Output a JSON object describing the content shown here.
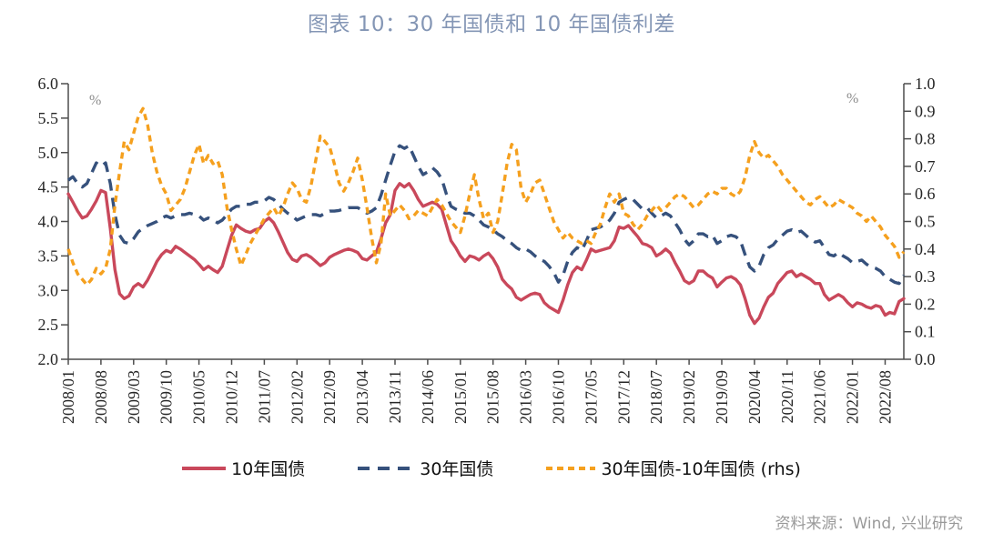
{
  "title": "图表 10：30 年国债和 10 年国债利差",
  "source": "资料来源：Wind, 兴业研究",
  "chart_data": {
    "type": "line",
    "title": "图表 10：30 年国债和 10 年国债利差",
    "left_axis_unit": "%",
    "right_axis_unit": "%",
    "left_ylim": [
      2.0,
      6.0
    ],
    "right_ylim": [
      0.0,
      1.0
    ],
    "left_ytick_labels": [
      "6.0",
      "5.5",
      "5.0",
      "4.5",
      "4.0",
      "3.5",
      "3.0",
      "2.5",
      "2.0"
    ],
    "right_ytick_labels": [
      "1.0",
      "0.9",
      "0.8",
      "0.7",
      "0.6",
      "0.5",
      "0.4",
      "0.3",
      "0.2",
      "0.1",
      "0.0"
    ],
    "x_start": "2008/01",
    "x_end": "2022/12",
    "n_points": 180,
    "x_label_step_months": 7,
    "x_tick_labels": [
      "2008/01",
      "2008/08",
      "2009/03",
      "2009/10",
      "2010/05",
      "2010/12",
      "2011/07",
      "2012/02",
      "2012/09",
      "2013/04",
      "2013/11",
      "2014/06",
      "2015/01",
      "2015/08",
      "2016/03",
      "2016/10",
      "2017/05",
      "2017/12",
      "2018/07",
      "2019/02",
      "2019/09",
      "2020/04",
      "2020/11",
      "2021/06",
      "2022/01",
      "2022/08"
    ],
    "grid": "off",
    "legend_position": "bottom",
    "series": [
      {
        "name": "10年国债",
        "axis": "left",
        "color": "#c9485b",
        "dash": "solid",
        "values": [
          4.4,
          4.28,
          4.15,
          4.05,
          4.08,
          4.18,
          4.3,
          4.45,
          4.42,
          3.9,
          3.3,
          2.95,
          2.88,
          2.92,
          3.05,
          3.1,
          3.05,
          3.15,
          3.28,
          3.42,
          3.52,
          3.58,
          3.55,
          3.64,
          3.6,
          3.55,
          3.5,
          3.45,
          3.38,
          3.3,
          3.35,
          3.3,
          3.26,
          3.35,
          3.58,
          3.8,
          3.95,
          3.9,
          3.86,
          3.84,
          3.88,
          3.9,
          4.0,
          4.05,
          3.98,
          3.85,
          3.7,
          3.55,
          3.45,
          3.42,
          3.5,
          3.52,
          3.48,
          3.42,
          3.36,
          3.4,
          3.48,
          3.52,
          3.55,
          3.58,
          3.6,
          3.58,
          3.55,
          3.46,
          3.44,
          3.5,
          3.55,
          3.75,
          3.98,
          4.1,
          4.45,
          4.55,
          4.5,
          4.55,
          4.45,
          4.32,
          4.22,
          4.25,
          4.28,
          4.25,
          4.18,
          3.95,
          3.72,
          3.62,
          3.5,
          3.42,
          3.5,
          3.48,
          3.44,
          3.5,
          3.54,
          3.46,
          3.34,
          3.16,
          3.08,
          3.02,
          2.9,
          2.86,
          2.9,
          2.94,
          2.96,
          2.94,
          2.82,
          2.76,
          2.72,
          2.68,
          2.86,
          3.08,
          3.26,
          3.34,
          3.3,
          3.44,
          3.6,
          3.56,
          3.58,
          3.6,
          3.62,
          3.72,
          3.92,
          3.9,
          3.94,
          3.86,
          3.78,
          3.68,
          3.66,
          3.62,
          3.5,
          3.54,
          3.6,
          3.54,
          3.4,
          3.28,
          3.14,
          3.1,
          3.14,
          3.28,
          3.28,
          3.22,
          3.18,
          3.05,
          3.12,
          3.18,
          3.2,
          3.16,
          3.08,
          2.88,
          2.64,
          2.52,
          2.6,
          2.76,
          2.9,
          2.96,
          3.1,
          3.18,
          3.26,
          3.28,
          3.2,
          3.24,
          3.2,
          3.16,
          3.1,
          3.1,
          2.94,
          2.86,
          2.9,
          2.94,
          2.9,
          2.82,
          2.76,
          2.82,
          2.8,
          2.76,
          2.74,
          2.78,
          2.76,
          2.64,
          2.68,
          2.66,
          2.84,
          2.88
        ]
      },
      {
        "name": "30年国债",
        "axis": "left",
        "color": "#36517c",
        "dash": "long",
        "values": [
          4.6,
          4.65,
          4.55,
          4.5,
          4.55,
          4.7,
          4.85,
          4.8,
          4.85,
          4.55,
          4.1,
          3.8,
          3.7,
          3.68,
          3.75,
          3.85,
          3.9,
          3.94,
          3.97,
          4.0,
          4.05,
          4.08,
          4.05,
          4.08,
          4.1,
          4.1,
          4.12,
          4.1,
          4.08,
          4.02,
          4.05,
          4.02,
          3.98,
          4.02,
          4.1,
          4.18,
          4.22,
          4.22,
          4.25,
          4.25,
          4.28,
          4.28,
          4.3,
          4.35,
          4.32,
          4.25,
          4.18,
          4.12,
          4.08,
          4.02,
          4.05,
          4.08,
          4.1,
          4.1,
          4.08,
          4.12,
          4.15,
          4.15,
          4.16,
          4.18,
          4.2,
          4.2,
          4.2,
          4.16,
          4.12,
          4.15,
          4.2,
          4.38,
          4.6,
          4.82,
          5.02,
          5.1,
          5.06,
          5.1,
          4.95,
          4.8,
          4.68,
          4.72,
          4.78,
          4.72,
          4.62,
          4.4,
          4.22,
          4.18,
          4.15,
          4.12,
          4.12,
          4.08,
          4.02,
          3.95,
          3.92,
          3.88,
          3.82,
          3.78,
          3.72,
          3.68,
          3.62,
          3.58,
          3.6,
          3.56,
          3.5,
          3.45,
          3.42,
          3.35,
          3.26,
          3.12,
          3.22,
          3.42,
          3.55,
          3.62,
          3.58,
          3.72,
          3.88,
          3.9,
          3.92,
          3.96,
          4.02,
          4.12,
          4.28,
          4.32,
          4.35,
          4.32,
          4.25,
          4.18,
          4.2,
          4.12,
          4.05,
          4.08,
          4.12,
          4.08,
          3.98,
          3.88,
          3.74,
          3.66,
          3.72,
          3.82,
          3.82,
          3.78,
          3.8,
          3.68,
          3.72,
          3.78,
          3.8,
          3.78,
          3.72,
          3.52,
          3.34,
          3.28,
          3.35,
          3.52,
          3.62,
          3.66,
          3.74,
          3.8,
          3.86,
          3.88,
          3.84,
          3.86,
          3.8,
          3.74,
          3.7,
          3.72,
          3.62,
          3.52,
          3.5,
          3.55,
          3.5,
          3.46,
          3.4,
          3.42,
          3.44,
          3.38,
          3.34,
          3.32,
          3.28,
          3.2,
          3.16,
          3.12,
          3.1,
          3.22
        ]
      },
      {
        "name": "30年国债-10年国债 (rhs)",
        "axis": "right",
        "color": "#f5a01e",
        "dash": "short",
        "values": [
          0.4,
          0.35,
          0.31,
          0.29,
          0.27,
          0.29,
          0.33,
          0.31,
          0.33,
          0.4,
          0.56,
          0.68,
          0.79,
          0.76,
          0.82,
          0.88,
          0.91,
          0.85,
          0.75,
          0.68,
          0.63,
          0.6,
          0.54,
          0.56,
          0.58,
          0.62,
          0.68,
          0.74,
          0.78,
          0.71,
          0.74,
          0.71,
          0.72,
          0.67,
          0.55,
          0.47,
          0.4,
          0.34,
          0.38,
          0.42,
          0.45,
          0.48,
          0.51,
          0.53,
          0.55,
          0.52,
          0.55,
          0.6,
          0.64,
          0.62,
          0.58,
          0.57,
          0.63,
          0.72,
          0.81,
          0.79,
          0.77,
          0.71,
          0.64,
          0.61,
          0.64,
          0.68,
          0.73,
          0.65,
          0.55,
          0.44,
          0.35,
          0.42,
          0.6,
          0.52,
          0.54,
          0.56,
          0.54,
          0.51,
          0.52,
          0.54,
          0.53,
          0.52,
          0.55,
          0.58,
          0.56,
          0.53,
          0.5,
          0.48,
          0.46,
          0.52,
          0.6,
          0.67,
          0.58,
          0.51,
          0.53,
          0.46,
          0.5,
          0.6,
          0.71,
          0.78,
          0.76,
          0.62,
          0.57,
          0.6,
          0.64,
          0.65,
          0.6,
          0.55,
          0.5,
          0.47,
          0.44,
          0.46,
          0.44,
          0.43,
          0.42,
          0.43,
          0.42,
          0.46,
          0.49,
          0.55,
          0.6,
          0.57,
          0.6,
          0.53,
          0.52,
          0.49,
          0.47,
          0.49,
          0.52,
          0.54,
          0.56,
          0.54,
          0.55,
          0.57,
          0.59,
          0.6,
          0.59,
          0.57,
          0.55,
          0.56,
          0.58,
          0.6,
          0.61,
          0.6,
          0.62,
          0.62,
          0.6,
          0.59,
          0.61,
          0.66,
          0.74,
          0.79,
          0.75,
          0.73,
          0.74,
          0.72,
          0.7,
          0.67,
          0.65,
          0.63,
          0.61,
          0.59,
          0.57,
          0.56,
          0.58,
          0.59,
          0.57,
          0.55,
          0.56,
          0.58,
          0.57,
          0.56,
          0.55,
          0.53,
          0.52,
          0.5,
          0.52,
          0.5,
          0.48,
          0.45,
          0.43,
          0.41,
          0.37,
          0.39
        ]
      }
    ]
  }
}
